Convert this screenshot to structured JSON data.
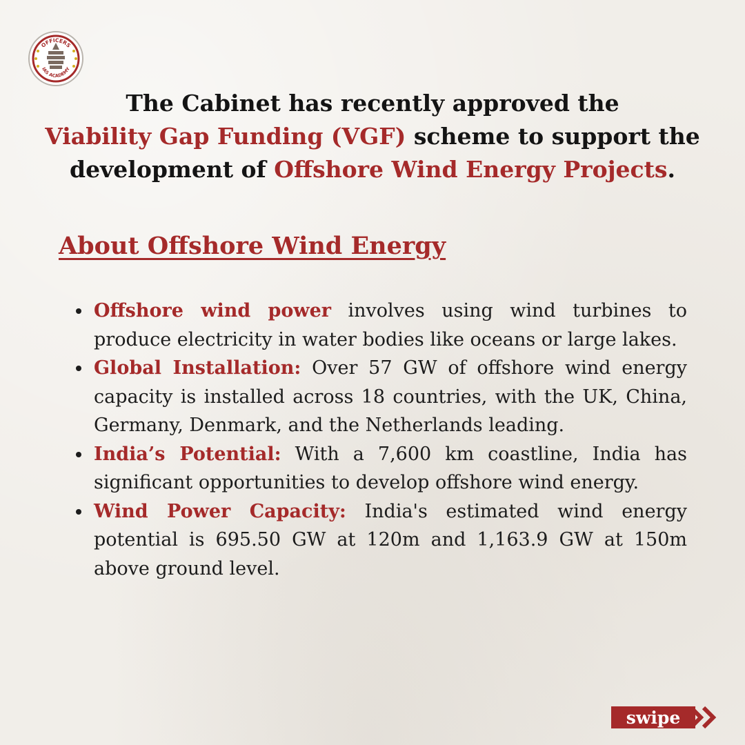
{
  "logo": {
    "top_text": "OFFICERS",
    "bottom_text": "IAS ACADEMY",
    "colors": {
      "ring": "#a52a2a",
      "stars": "#d4b020",
      "inner": "#ffffff"
    }
  },
  "headline": {
    "part1": "The Cabinet has recently approved the",
    "highlight1": "Viability Gap Funding (VGF)",
    "part2": " scheme to support the development of ",
    "highlight2": "Offshore Wind Energy Projects",
    "part3": "."
  },
  "section": {
    "title": "About Offshore Wind Energy"
  },
  "bullets": [
    {
      "label": "Offshore wind power",
      "text": " involves using wind turbines to produce electricity in water bodies like oceans or large lakes."
    },
    {
      "label": "Global Installation:",
      "text": " Over 57 GW of offshore wind energy capacity is installed across 18 countries, with the UK, China, Germany, Denmark, and the Netherlands leading."
    },
    {
      "label": "India’s Potential:",
      "text": " With a 7,600 km coastline, India has significant opportunities to develop offshore wind energy."
    },
    {
      "label": "Wind Power Capacity:",
      "text": " India's estimated wind energy potential is 695.50 GW at 120m and 1,163.9 GW at 150m above ground level."
    }
  ],
  "swipe": {
    "label": "swipe",
    "icon": "double-chevron-right-icon"
  },
  "colors": {
    "accent": "#a52a2a",
    "text": "#1c1c1c",
    "background": "#f1eee9"
  }
}
